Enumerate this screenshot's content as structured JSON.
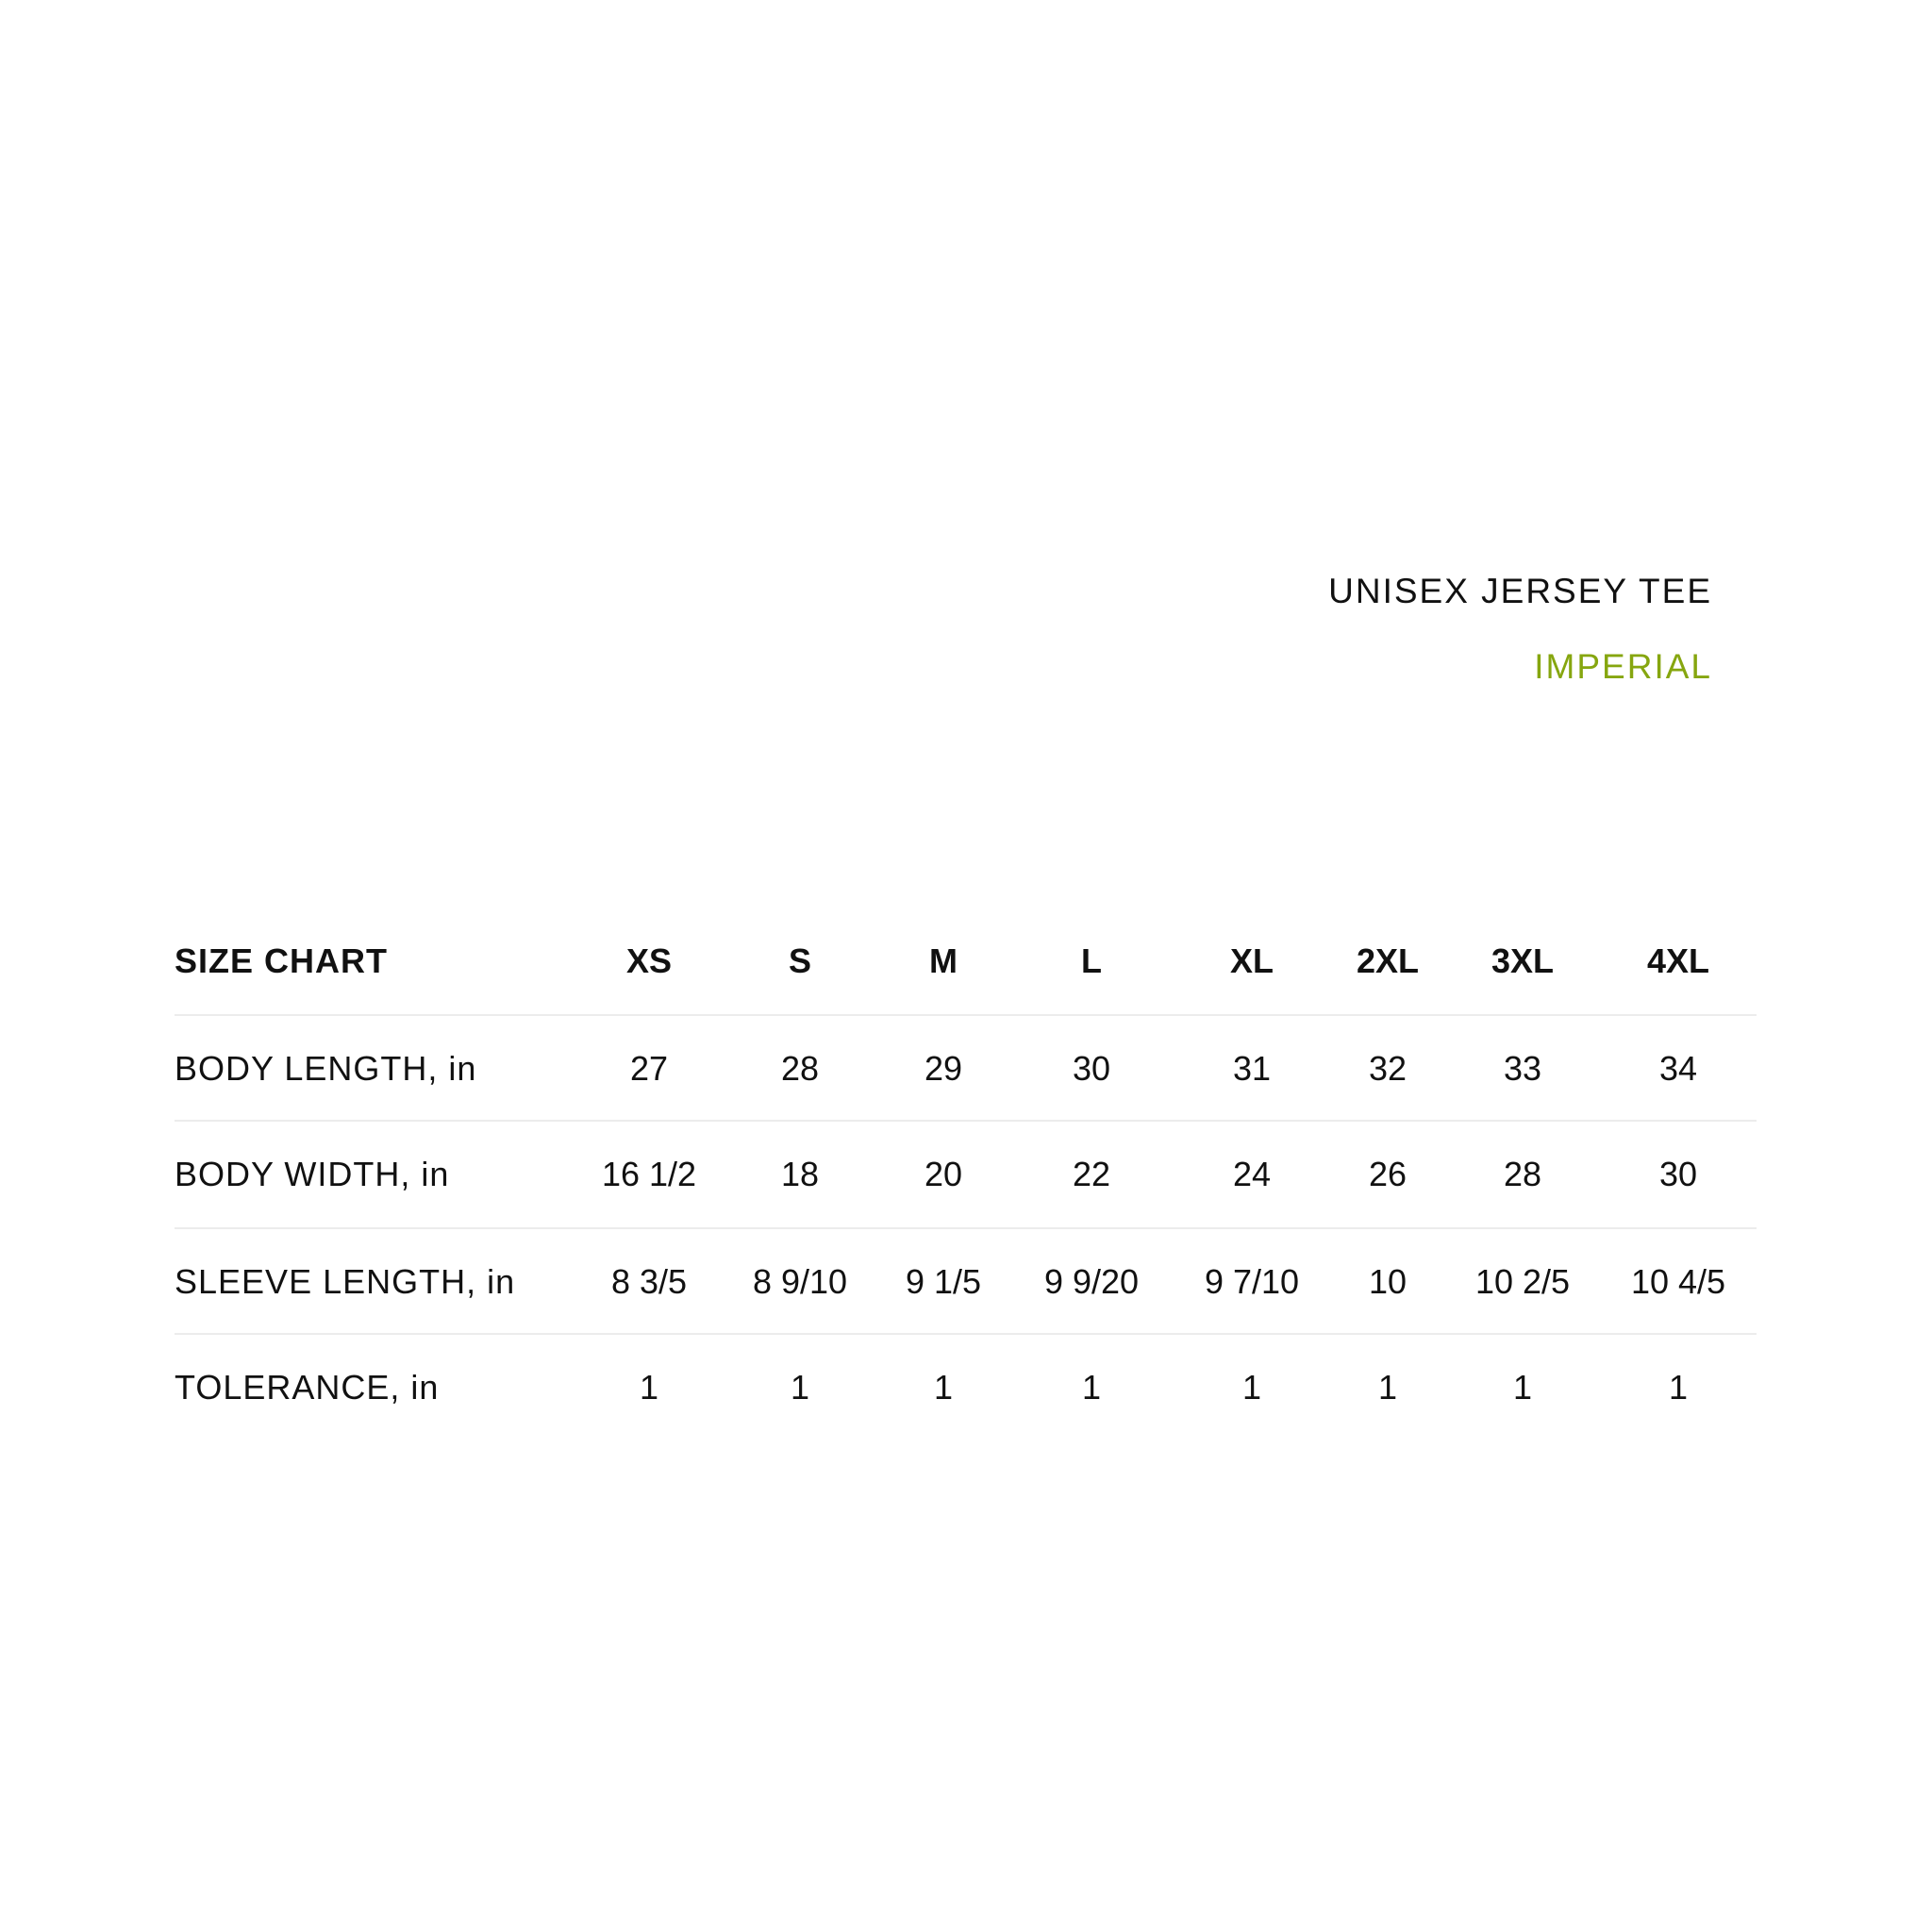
{
  "title": "UNISEX JERSEY TEE",
  "subtitle": "IMPERIAL",
  "accent_color": "#86a60f",
  "table": {
    "header_label": "SIZE CHART",
    "sizes": [
      "XS",
      "S",
      "M",
      "L",
      "XL",
      "2XL",
      "3XL",
      "4XL"
    ],
    "rows": [
      {
        "label": "BODY LENGTH, in",
        "values": [
          "27",
          "28",
          "29",
          "30",
          "31",
          "32",
          "33",
          "34"
        ]
      },
      {
        "label": "BODY WIDTH, in",
        "values": [
          "16 1/2",
          "18",
          "20",
          "22",
          "24",
          "26",
          "28",
          "30"
        ]
      },
      {
        "label": "SLEEVE LENGTH, in",
        "values": [
          "8 3/5",
          "8 9/10",
          "9 1/5",
          "9 9/20",
          "9 7/10",
          "10",
          "10 2/5",
          "10 4/5"
        ]
      },
      {
        "label": "TOLERANCE, in",
        "values": [
          "1",
          "1",
          "1",
          "1",
          "1",
          "1",
          "1",
          "1"
        ]
      }
    ]
  }
}
